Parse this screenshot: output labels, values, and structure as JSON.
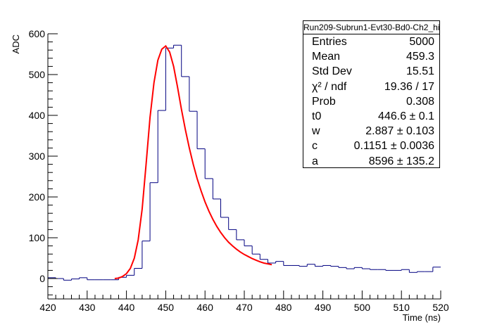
{
  "chart_data": {
    "type": "histogram",
    "title": "Run209-Subrun1-Evt30-Bd0-Ch2_hist",
    "xlabel": "Time (ns)",
    "ylabel": "ADC",
    "xlim": [
      420,
      520
    ],
    "ylim": [
      -50,
      600
    ],
    "xticks": [
      "420",
      "430",
      "440",
      "450",
      "460",
      "470",
      "480",
      "490",
      "500",
      "510",
      "520"
    ],
    "yticks": [
      "0",
      "100",
      "200",
      "300",
      "400",
      "500",
      "600"
    ],
    "bin_width": 2,
    "bin_edges_start": 420,
    "histogram_values": [
      2,
      0,
      -4,
      -1,
      2,
      -3,
      -3,
      -3,
      -3,
      3,
      8,
      25,
      92,
      235,
      412,
      565,
      572,
      495,
      410,
      318,
      245,
      195,
      150,
      120,
      95,
      80,
      60,
      47,
      38,
      42,
      32,
      32,
      30,
      35,
      30,
      32,
      30,
      27,
      24,
      27,
      24,
      22,
      22,
      20,
      20,
      22,
      15,
      17,
      17,
      28
    ],
    "fit_function": {
      "color": "#ff0000",
      "x_range": [
        437,
        477
      ],
      "points": [
        [
          437,
          0
        ],
        [
          438,
          1
        ],
        [
          439,
          5
        ],
        [
          440,
          12
        ],
        [
          441,
          25
        ],
        [
          442,
          50
        ],
        [
          443,
          95
        ],
        [
          444,
          170
        ],
        [
          445,
          280
        ],
        [
          446,
          395
        ],
        [
          447,
          480
        ],
        [
          448,
          535
        ],
        [
          449,
          562
        ],
        [
          450,
          570
        ],
        [
          451,
          555
        ],
        [
          452,
          520
        ],
        [
          453,
          470
        ],
        [
          454,
          415
        ],
        [
          455,
          365
        ],
        [
          456,
          320
        ],
        [
          457,
          280
        ],
        [
          458,
          245
        ],
        [
          459,
          215
        ],
        [
          460,
          188
        ],
        [
          461,
          165
        ],
        [
          462,
          145
        ],
        [
          463,
          128
        ],
        [
          464,
          113
        ],
        [
          465,
          100
        ],
        [
          466,
          89
        ],
        [
          467,
          80
        ],
        [
          468,
          72
        ],
        [
          469,
          65
        ],
        [
          470,
          59
        ],
        [
          471,
          54
        ],
        [
          472,
          49
        ],
        [
          473,
          45
        ],
        [
          474,
          41
        ],
        [
          475,
          38
        ],
        [
          476,
          36
        ],
        [
          477,
          34
        ]
      ]
    },
    "stats": [
      {
        "label": "Entries",
        "value": "5000"
      },
      {
        "label": "Mean",
        "value": "459.3"
      },
      {
        "label": "Std Dev",
        "value": "15.51"
      },
      {
        "label": "χ² / ndf",
        "value": "19.36 / 17"
      },
      {
        "label": "Prob",
        "value": "0.308"
      },
      {
        "label": "t0",
        "value": "446.6 ± 0.1"
      },
      {
        "label": "w",
        "value": "2.887 ± 0.103"
      },
      {
        "label": "c",
        "value": "0.1151 ± 0.0036"
      },
      {
        "label": "a",
        "value": "8596 ± 135.2"
      }
    ],
    "colors": {
      "histogram": "#000080",
      "fit": "#ff0000",
      "axis": "#000000"
    }
  }
}
